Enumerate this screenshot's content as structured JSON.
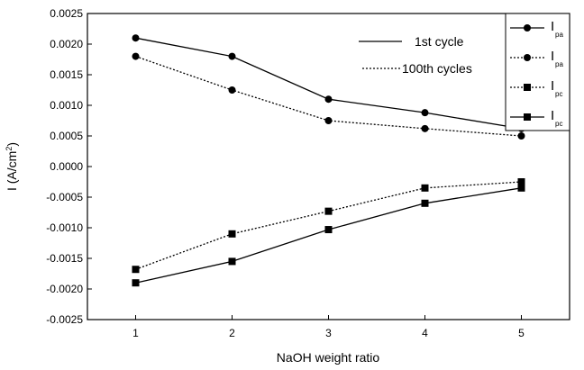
{
  "chart_data": {
    "type": "line",
    "xlabel": "NaOH weight ratio",
    "ylabel": "I (A/cm",
    "ylabel_sup": "2",
    "ylabel_close": ")",
    "xlim": [
      0.5,
      5.5
    ],
    "ylim": [
      -0.0025,
      0.0025
    ],
    "xticks": [
      1,
      2,
      3,
      4,
      5
    ],
    "yticks": [
      0.0025,
      0.002,
      0.0015,
      0.001,
      0.0005,
      0.0,
      -0.0005,
      -0.001,
      -0.0015,
      -0.002,
      -0.0025
    ],
    "ytick_labels": [
      "0.0025",
      "0.0020",
      "0.0015",
      "0.0010",
      "0.0005",
      "0.0000",
      "-0.0005",
      "-0.0010",
      "-0.0015",
      "-0.0020",
      "-0.0025"
    ],
    "grid": false,
    "x": [
      1,
      2,
      3,
      4,
      5
    ],
    "series": [
      {
        "name": "I",
        "sub": "pa",
        "style": "solid",
        "marker": "circle",
        "values": [
          0.0021,
          0.0018,
          0.0011,
          0.00088,
          0.00062
        ]
      },
      {
        "name": "I",
        "sub": "pa",
        "style": "dotted",
        "marker": "circle",
        "values": [
          0.0018,
          0.00125,
          0.00075,
          0.00062,
          0.0005
        ]
      },
      {
        "name": "I",
        "sub": "pc",
        "style": "dotted",
        "marker": "square",
        "values": [
          -0.00168,
          -0.0011,
          -0.00073,
          -0.00035,
          -0.00025
        ]
      },
      {
        "name": "I",
        "sub": "pc",
        "style": "solid",
        "marker": "square",
        "values": [
          -0.0019,
          -0.00155,
          -0.00103,
          -0.0006,
          -0.00035
        ]
      }
    ],
    "annotations": [
      {
        "text": "1st cycle",
        "style": "solid"
      },
      {
        "text": "100th cycles",
        "style": "dotted"
      }
    ],
    "legend_position": "top-right"
  }
}
